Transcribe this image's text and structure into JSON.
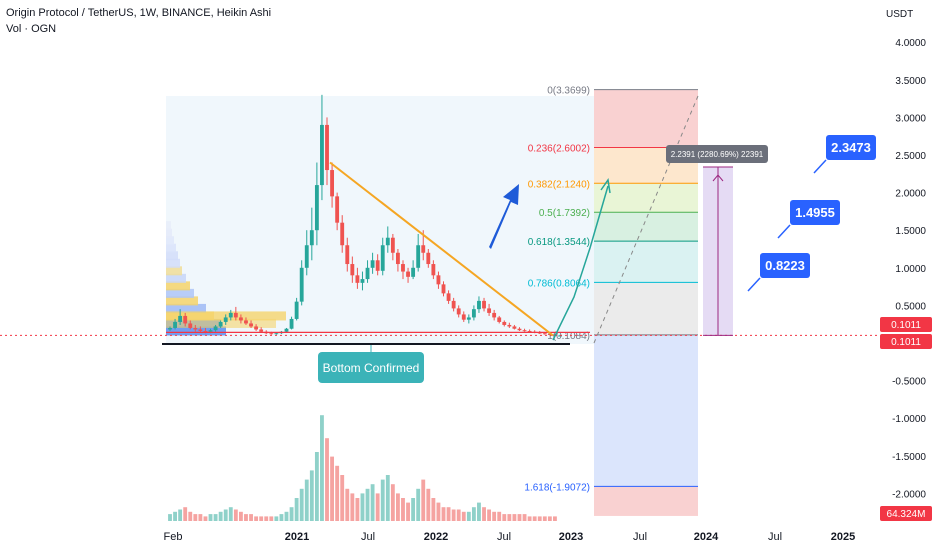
{
  "header": {
    "title": "Origin Protocol / TetherUS, 1W, BINANCE, Heikin Ashi",
    "indicator": "Vol · OGN"
  },
  "colors": {
    "up": "#26a69a",
    "down": "#ef5350",
    "trendline": "#f5a623",
    "arrow": "#1e5bd8",
    "projection": "#26a69a",
    "label_bg": "#2962ff",
    "badge": "#f23645",
    "annotation": "#3bb3b8"
  },
  "chart_data": {
    "type": "candlestick",
    "price_axis": {
      "unit": "USDT",
      "ticks": [
        4.0,
        3.5,
        3.0,
        2.5,
        2.0,
        1.5,
        1.0,
        0.5,
        -0.5,
        -1.0,
        -1.5,
        -2.0
      ],
      "tick_labels": [
        "4.0000",
        "3.5000",
        "3.0000",
        "2.5000",
        "2.0000",
        "1.5000",
        "1.0000",
        "0.5000",
        "-0.5000",
        "-1.0000",
        "-1.5000",
        "-2.0000"
      ],
      "range": [
        -2.3,
        4.4
      ]
    },
    "time_axis": {
      "labels": [
        "Feb",
        "2021",
        "Jul",
        "2022",
        "Jul",
        "2023",
        "Jul",
        "2024",
        "Jul",
        "2025"
      ]
    },
    "current_price": [
      "0.1011",
      "0.1011"
    ],
    "volume_label": "64.324M",
    "candles": [
      [
        0.18,
        0.22,
        0.16,
        0.2
      ],
      [
        0.2,
        0.32,
        0.18,
        0.28
      ],
      [
        0.28,
        0.45,
        0.24,
        0.36
      ],
      [
        0.36,
        0.4,
        0.22,
        0.26
      ],
      [
        0.26,
        0.3,
        0.18,
        0.2
      ],
      [
        0.2,
        0.24,
        0.15,
        0.18
      ],
      [
        0.18,
        0.22,
        0.14,
        0.16
      ],
      [
        0.16,
        0.2,
        0.13,
        0.15
      ],
      [
        0.15,
        0.19,
        0.13,
        0.17
      ],
      [
        0.17,
        0.24,
        0.15,
        0.22
      ],
      [
        0.22,
        0.3,
        0.2,
        0.28
      ],
      [
        0.28,
        0.38,
        0.24,
        0.34
      ],
      [
        0.34,
        0.44,
        0.3,
        0.4
      ],
      [
        0.4,
        0.48,
        0.3,
        0.34
      ],
      [
        0.34,
        0.38,
        0.26,
        0.3
      ],
      [
        0.3,
        0.34,
        0.24,
        0.26
      ],
      [
        0.26,
        0.3,
        0.2,
        0.22
      ],
      [
        0.22,
        0.25,
        0.16,
        0.18
      ],
      [
        0.18,
        0.21,
        0.14,
        0.15
      ],
      [
        0.15,
        0.17,
        0.12,
        0.13
      ],
      [
        0.13,
        0.15,
        0.11,
        0.12
      ],
      [
        0.12,
        0.14,
        0.11,
        0.13
      ],
      [
        0.13,
        0.16,
        0.12,
        0.15
      ],
      [
        0.15,
        0.2,
        0.14,
        0.19
      ],
      [
        0.19,
        0.35,
        0.18,
        0.32
      ],
      [
        0.32,
        0.6,
        0.3,
        0.55
      ],
      [
        0.55,
        1.1,
        0.5,
        1.0
      ],
      [
        1.0,
        1.5,
        0.9,
        1.3
      ],
      [
        1.3,
        1.8,
        1.1,
        1.5
      ],
      [
        1.5,
        2.4,
        1.3,
        2.1
      ],
      [
        2.1,
        3.3,
        1.9,
        2.9
      ],
      [
        2.9,
        3.0,
        2.1,
        2.3
      ],
      [
        2.3,
        2.4,
        1.8,
        1.95
      ],
      [
        1.95,
        2.0,
        1.5,
        1.6
      ],
      [
        1.6,
        1.7,
        1.2,
        1.3
      ],
      [
        1.3,
        1.4,
        0.95,
        1.05
      ],
      [
        1.05,
        1.15,
        0.8,
        0.9
      ],
      [
        0.9,
        1.0,
        0.72,
        0.8
      ],
      [
        0.8,
        0.95,
        0.7,
        0.85
      ],
      [
        0.85,
        1.1,
        0.8,
        1.0
      ],
      [
        1.0,
        1.2,
        0.92,
        1.1
      ],
      [
        1.1,
        1.18,
        0.9,
        0.96
      ],
      [
        0.96,
        1.4,
        0.9,
        1.3
      ],
      [
        1.3,
        1.55,
        1.2,
        1.4
      ],
      [
        1.4,
        1.45,
        1.1,
        1.2
      ],
      [
        1.2,
        1.25,
        0.95,
        1.05
      ],
      [
        1.05,
        1.1,
        0.85,
        0.95
      ],
      [
        0.95,
        1.0,
        0.8,
        0.88
      ],
      [
        0.88,
        1.1,
        0.85,
        1.0
      ],
      [
        1.0,
        1.45,
        0.95,
        1.3
      ],
      [
        1.3,
        1.5,
        1.1,
        1.2
      ],
      [
        1.2,
        1.25,
        1.0,
        1.05
      ],
      [
        1.05,
        1.1,
        0.85,
        0.9
      ],
      [
        0.9,
        0.95,
        0.72,
        0.78
      ],
      [
        0.78,
        0.82,
        0.62,
        0.66
      ],
      [
        0.66,
        0.7,
        0.52,
        0.56
      ],
      [
        0.56,
        0.6,
        0.42,
        0.46
      ],
      [
        0.46,
        0.5,
        0.34,
        0.38
      ],
      [
        0.38,
        0.42,
        0.28,
        0.31
      ],
      [
        0.31,
        0.38,
        0.26,
        0.34
      ],
      [
        0.34,
        0.5,
        0.3,
        0.45
      ],
      [
        0.45,
        0.62,
        0.4,
        0.56
      ],
      [
        0.56,
        0.6,
        0.42,
        0.46
      ],
      [
        0.46,
        0.52,
        0.36,
        0.4
      ],
      [
        0.4,
        0.44,
        0.3,
        0.34
      ],
      [
        0.34,
        0.36,
        0.26,
        0.28
      ],
      [
        0.28,
        0.3,
        0.22,
        0.24
      ],
      [
        0.24,
        0.27,
        0.2,
        0.22
      ],
      [
        0.22,
        0.24,
        0.18,
        0.19
      ],
      [
        0.19,
        0.21,
        0.16,
        0.17
      ],
      [
        0.17,
        0.19,
        0.15,
        0.16
      ],
      [
        0.16,
        0.18,
        0.14,
        0.15
      ],
      [
        0.15,
        0.17,
        0.13,
        0.14
      ],
      [
        0.14,
        0.16,
        0.12,
        0.13
      ],
      [
        0.13,
        0.14,
        0.11,
        0.12
      ],
      [
        0.12,
        0.13,
        0.1,
        0.11
      ],
      [
        0.11,
        0.12,
        0.09,
        0.1
      ],
      [
        0.1,
        0.11,
        0.09,
        0.1
      ]
    ],
    "volumes": [
      3,
      4,
      5,
      6,
      4,
      3,
      3,
      2,
      3,
      3,
      4,
      5,
      6,
      5,
      4,
      3,
      3,
      2,
      2,
      2,
      2,
      2,
      3,
      4,
      6,
      10,
      14,
      18,
      22,
      30,
      46,
      36,
      28,
      24,
      20,
      14,
      12,
      10,
      12,
      14,
      16,
      12,
      18,
      20,
      16,
      12,
      10,
      8,
      10,
      14,
      18,
      14,
      10,
      8,
      6,
      6,
      5,
      5,
      4,
      4,
      6,
      8,
      6,
      5,
      4,
      4,
      3,
      3,
      3,
      3,
      3,
      2,
      2,
      2,
      2,
      2,
      2
    ],
    "fibonacci": [
      {
        "label": "0(3.3699)",
        "value": 3.3699,
        "color": "#787b86"
      },
      {
        "label": "0.236(2.6002)",
        "value": 2.6002,
        "color": "#f23645"
      },
      {
        "label": "0.382(2.1240)",
        "value": 2.124,
        "color": "#ff9800"
      },
      {
        "label": "0.5(1.7392)",
        "value": 1.7392,
        "color": "#4caf50"
      },
      {
        "label": "0.618(1.3544)",
        "value": 1.3544,
        "color": "#089981"
      },
      {
        "label": "0.786(0.8064)",
        "value": 0.8064,
        "color": "#00bcd4"
      },
      {
        "label": "1(0.1084)",
        "value": 0.1084,
        "color": "#787b86"
      },
      {
        "label": "1.618(-1.9072)",
        "value": -1.9072,
        "color": "#2962ff"
      }
    ],
    "targets": [
      "0.8223",
      "1.4955",
      "2.3473"
    ],
    "measure_label": "2.2391 (2280.69%) 22391",
    "annotation": "Bottom Confirmed"
  }
}
